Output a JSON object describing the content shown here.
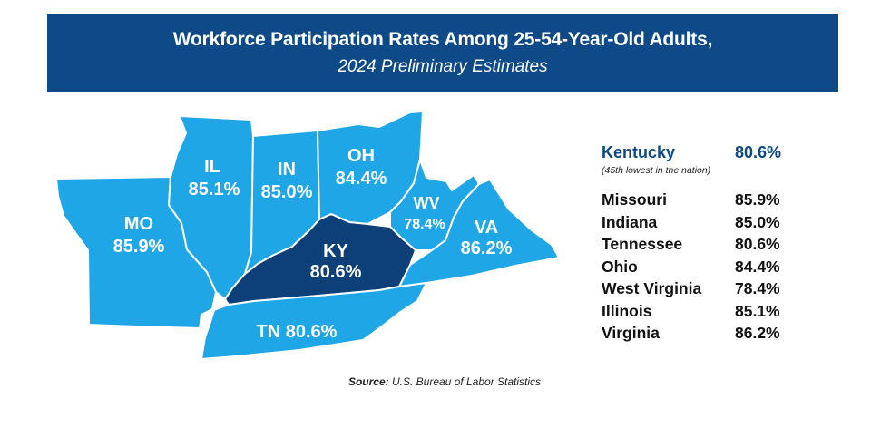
{
  "header": {
    "title": "Workforce Participation Rates Among 25-54-Year-Old Adults,",
    "subtitle": "2024 Preliminary Estimates"
  },
  "colors": {
    "banner": "#0d4a87",
    "state_fill": "#1ea6e6",
    "highlight_fill": "#0d3f78",
    "highlight_text": "#0d4a87"
  },
  "map_labels": {
    "mo": {
      "abbr": "MO",
      "value": "85.9%"
    },
    "il": {
      "abbr": "IL",
      "value": "85.1%"
    },
    "in": {
      "abbr": "IN",
      "value": "85.0%"
    },
    "oh": {
      "abbr": "OH",
      "value": "84.4%"
    },
    "wv": {
      "abbr": "WV",
      "value": "78.4%"
    },
    "va": {
      "abbr": "VA",
      "value": "86.2%"
    },
    "ky": {
      "abbr": "KY",
      "value": "80.6%"
    },
    "tn": {
      "text": "TN 80.6%"
    }
  },
  "featured": {
    "name": "Kentucky",
    "value": "80.6%",
    "note": "(45th lowest in the nation)"
  },
  "rows": [
    {
      "name": "Missouri",
      "value": "85.9%"
    },
    {
      "name": "Indiana",
      "value": "85.0%"
    },
    {
      "name": "Tennessee",
      "value": "80.6%"
    },
    {
      "name": "Ohio",
      "value": "84.4%"
    },
    {
      "name": "West Virginia",
      "value": "78.4%"
    },
    {
      "name": "Illinois",
      "value": "85.1%"
    },
    {
      "name": "Virginia",
      "value": "86.2%"
    }
  ],
  "source": {
    "label": "Source:",
    "text": "U.S. Bureau of Labor Statistics"
  }
}
